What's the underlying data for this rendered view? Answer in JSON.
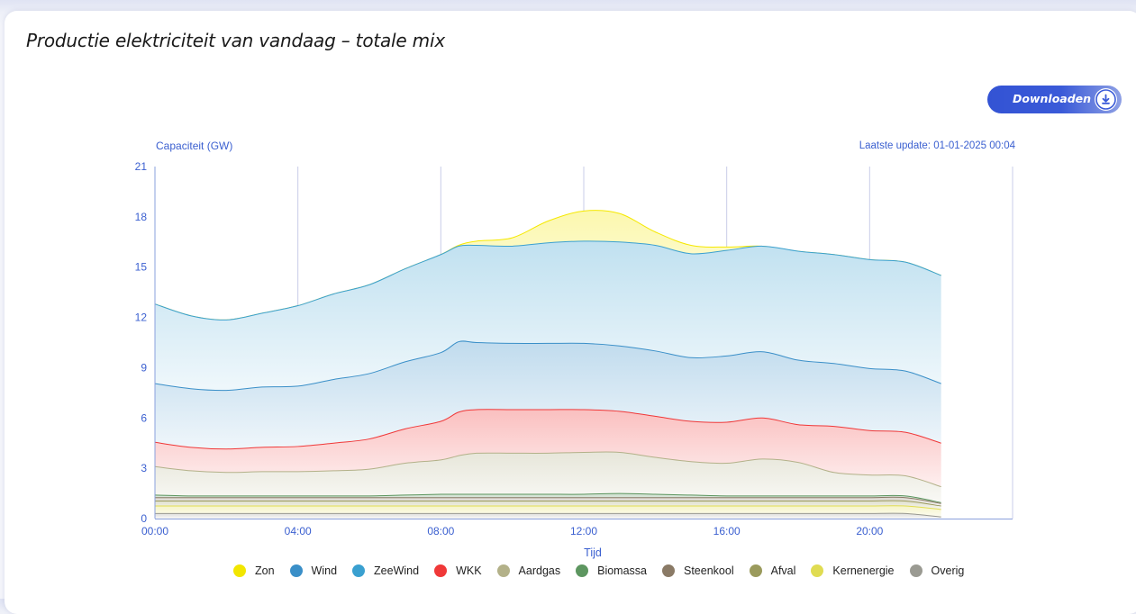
{
  "page": {
    "title": "Productie elektriciteit van vandaag – totale mix",
    "download_label": "Downloaden",
    "download_icon": "download-icon"
  },
  "chart_data": {
    "type": "area",
    "stacked": true,
    "ylabel": "Capaciteit (GW)",
    "xlabel": "Tijd",
    "update_text": "Laatste update: 01-01-2025 00:04",
    "ylim": [
      0,
      21
    ],
    "yticks": [
      "0",
      "3",
      "6",
      "9",
      "12",
      "15",
      "18",
      "21"
    ],
    "xlim": [
      "00:00",
      "24:00"
    ],
    "xticks": [
      "00:00",
      "04:00",
      "08:00",
      "12:00",
      "16:00",
      "20:00"
    ],
    "grid": "vertical",
    "legend_position": "bottom",
    "x": [
      "00:00",
      "01:00",
      "02:00",
      "03:00",
      "04:00",
      "05:00",
      "06:00",
      "07:00",
      "08:00",
      "08:30",
      "09:00",
      "10:00",
      "11:00",
      "12:00",
      "13:00",
      "14:00",
      "15:00",
      "16:00",
      "17:00",
      "18:00",
      "19:00",
      "20:00",
      "21:00",
      "22:00"
    ],
    "series": [
      {
        "name": "Overig",
        "color": "#9a9a92",
        "values": [
          0.3,
          0.3,
          0.3,
          0.3,
          0.3,
          0.3,
          0.3,
          0.3,
          0.3,
          0.3,
          0.3,
          0.3,
          0.3,
          0.3,
          0.3,
          0.3,
          0.3,
          0.3,
          0.3,
          0.3,
          0.3,
          0.3,
          0.3,
          0.1
        ]
      },
      {
        "name": "Kernenergie",
        "color": "#e0dc52",
        "values": [
          0.45,
          0.45,
          0.45,
          0.45,
          0.45,
          0.45,
          0.45,
          0.45,
          0.45,
          0.45,
          0.45,
          0.45,
          0.45,
          0.45,
          0.45,
          0.45,
          0.45,
          0.45,
          0.45,
          0.45,
          0.45,
          0.45,
          0.45,
          0.45
        ]
      },
      {
        "name": "Afval",
        "color": "#9a9a5c",
        "values": [
          0.3,
          0.3,
          0.3,
          0.3,
          0.3,
          0.3,
          0.3,
          0.3,
          0.3,
          0.3,
          0.3,
          0.3,
          0.3,
          0.3,
          0.3,
          0.3,
          0.3,
          0.3,
          0.3,
          0.3,
          0.3,
          0.3,
          0.3,
          0.2
        ]
      },
      {
        "name": "Steenkool",
        "color": "#8a7a66",
        "values": [
          0.2,
          0.2,
          0.2,
          0.2,
          0.2,
          0.2,
          0.2,
          0.2,
          0.2,
          0.2,
          0.2,
          0.2,
          0.2,
          0.2,
          0.2,
          0.2,
          0.2,
          0.2,
          0.2,
          0.2,
          0.2,
          0.2,
          0.2,
          0.15
        ]
      },
      {
        "name": "Biomassa",
        "color": "#5d9660",
        "values": [
          0.15,
          0.1,
          0.1,
          0.1,
          0.1,
          0.1,
          0.1,
          0.15,
          0.2,
          0.2,
          0.2,
          0.2,
          0.2,
          0.2,
          0.25,
          0.2,
          0.15,
          0.1,
          0.1,
          0.1,
          0.1,
          0.1,
          0.1,
          0.05
        ]
      },
      {
        "name": "Aardgas",
        "color": "#b3b189",
        "values": [
          1.7,
          1.5,
          1.4,
          1.45,
          1.45,
          1.5,
          1.6,
          1.9,
          2.05,
          2.3,
          2.45,
          2.45,
          2.45,
          2.5,
          2.45,
          2.2,
          2.0,
          1.95,
          2.2,
          2.0,
          1.4,
          1.25,
          1.2,
          0.95
        ]
      },
      {
        "name": "WKK",
        "color": "#f03838",
        "values": [
          1.45,
          1.4,
          1.4,
          1.45,
          1.5,
          1.65,
          1.8,
          2.05,
          2.3,
          2.6,
          2.6,
          2.6,
          2.6,
          2.55,
          2.45,
          2.45,
          2.4,
          2.45,
          2.45,
          2.25,
          2.75,
          2.65,
          2.6,
          2.6
        ]
      },
      {
        "name": "Wind",
        "color": "#3a8fc8",
        "values": [
          3.5,
          3.5,
          3.5,
          3.6,
          3.6,
          3.8,
          3.9,
          4.0,
          4.1,
          4.2,
          4.0,
          3.95,
          3.95,
          3.95,
          3.9,
          3.9,
          3.8,
          3.95,
          3.95,
          3.85,
          3.75,
          3.7,
          3.65,
          3.55
        ]
      },
      {
        "name": "ZeeWind",
        "color": "#3aa0d0",
        "values": [
          4.75,
          4.35,
          4.2,
          4.4,
          4.8,
          5.1,
          5.3,
          5.55,
          5.85,
          5.7,
          5.8,
          5.8,
          6.0,
          6.1,
          6.2,
          6.3,
          6.2,
          6.3,
          6.3,
          6.5,
          6.5,
          6.5,
          6.5,
          6.45
        ]
      },
      {
        "name": "Zon",
        "color": "#f5e800",
        "values": [
          0,
          0,
          0,
          0,
          0,
          0,
          0,
          0,
          0,
          0.05,
          0.25,
          0.5,
          1.3,
          1.8,
          1.7,
          0.8,
          0.5,
          0.2,
          0,
          0,
          0,
          0,
          0,
          0
        ]
      }
    ]
  },
  "legend": [
    {
      "name": "Zon",
      "color": "#f2e600"
    },
    {
      "name": "Wind",
      "color": "#3a8fc8"
    },
    {
      "name": "ZeeWind",
      "color": "#3aa0d0"
    },
    {
      "name": "WKK",
      "color": "#f03838"
    },
    {
      "name": "Aardgas",
      "color": "#b3b189"
    },
    {
      "name": "Biomassa",
      "color": "#5d9660"
    },
    {
      "name": "Steenkool",
      "color": "#8a7a66"
    },
    {
      "name": "Afval",
      "color": "#9a9a5c"
    },
    {
      "name": "Kernenergie",
      "color": "#e0dc52"
    },
    {
      "name": "Overig",
      "color": "#9a9a92"
    }
  ]
}
